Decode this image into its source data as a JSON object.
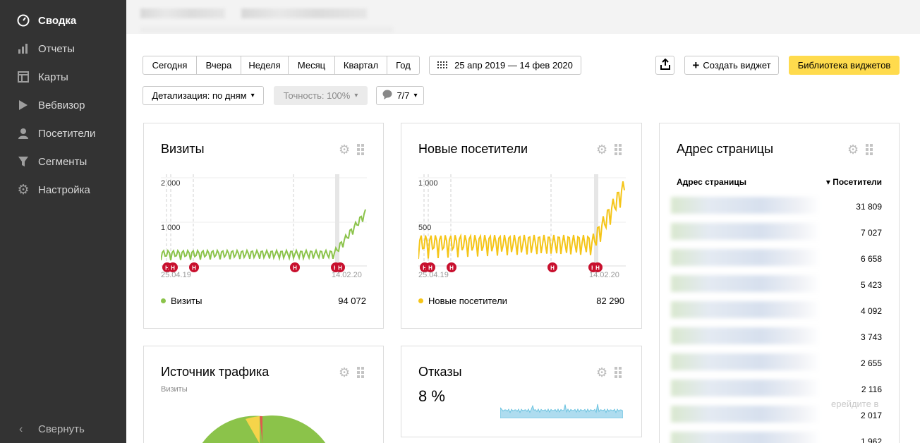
{
  "sidebar": {
    "items": [
      {
        "label": "Сводка",
        "icon": "dashboard-icon",
        "active": true
      },
      {
        "label": "Отчеты",
        "icon": "bar-chart-icon"
      },
      {
        "label": "Карты",
        "icon": "map-layout-icon"
      },
      {
        "label": "Вебвизор",
        "icon": "play-icon"
      },
      {
        "label": "Посетители",
        "icon": "user-icon"
      },
      {
        "label": "Сегменты",
        "icon": "funnel-icon"
      },
      {
        "label": "Настройка",
        "icon": "gear-icon"
      }
    ],
    "collapse_label": "Свернуть"
  },
  "toolbar": {
    "periods": [
      "Сегодня",
      "Вчера",
      "Неделя",
      "Месяц",
      "Квартал",
      "Год"
    ],
    "date_range": "25 апр 2019 — 14 фев 2020",
    "create_widget": "Создать виджет",
    "widget_library": "Библиотека виджетов",
    "detail": "Детализация: по дням",
    "accuracy": "Точность: 100%",
    "segments": "7/7"
  },
  "widgets": {
    "visits": {
      "title": "Визиты",
      "y_ticks": [
        "2 000",
        "1 000"
      ],
      "date_start": "25.04.19",
      "date_end": "14.02.20",
      "legend": "Визиты",
      "total": "94 072",
      "color": "#8bc34a"
    },
    "new_visitors": {
      "title": "Новые посетители",
      "y_ticks": [
        "1 000",
        "500"
      ],
      "date_start": "25.04.19",
      "date_end": "14.02.20",
      "legend": "Новые посетители",
      "total": "82 290",
      "color": "#f5c518"
    },
    "traffic_source": {
      "title": "Источник трафика",
      "subtitle": "Визиты"
    },
    "bounces": {
      "title": "Отказы",
      "value": "8 %",
      "color": "#6cc3e0"
    },
    "page_address": {
      "title": "Адрес страницы",
      "col_address": "Адрес страницы",
      "col_visitors": "▾ Посетители",
      "values": [
        "31 809",
        "7 027",
        "6 658",
        "5 423",
        "4 092",
        "3 743",
        "2 655",
        "2 116",
        "2 017",
        "1 962"
      ],
      "overlay": "ерейдите в"
    }
  },
  "marker_letter": "Н"
}
